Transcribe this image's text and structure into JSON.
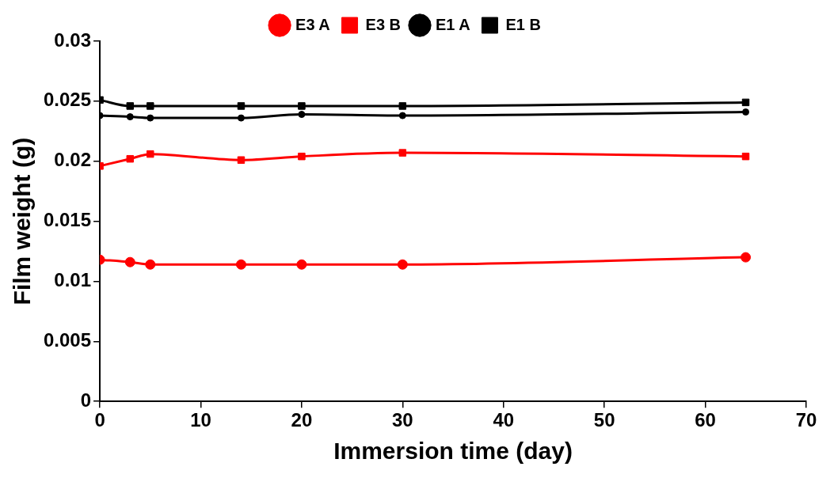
{
  "chart_data": {
    "type": "line",
    "xlabel": "Immersion time (day)",
    "ylabel": "Film weight (g)",
    "x": [
      0,
      3,
      5,
      14,
      20,
      30,
      64
    ],
    "series": [
      {
        "name": "E3 A",
        "color": "#ff0000",
        "marker": "circle",
        "values": [
          0.0118,
          0.0116,
          0.0114,
          0.0114,
          0.0114,
          0.0114,
          0.012
        ]
      },
      {
        "name": "E3 B",
        "color": "#ff0000",
        "marker": "square",
        "values": [
          0.0196,
          0.0202,
          0.0206,
          0.0201,
          0.0204,
          0.0207,
          0.0204
        ]
      },
      {
        "name": "E1 A",
        "color": "#000000",
        "marker": "circle",
        "values": [
          0.0238,
          0.0237,
          0.0236,
          0.0236,
          0.0239,
          0.0238,
          0.0241
        ]
      },
      {
        "name": "E1 B",
        "color": "#000000",
        "marker": "square",
        "values": [
          0.0251,
          0.0246,
          0.0246,
          0.0246,
          0.0246,
          0.0246,
          0.0249
        ]
      }
    ],
    "xlim": [
      0,
      70
    ],
    "xticks": [
      0,
      10,
      20,
      30,
      40,
      50,
      60,
      70
    ],
    "ylim": [
      0,
      0.03
    ],
    "yticks": [
      0,
      0.005,
      0.01,
      0.015,
      0.02,
      0.025,
      0.03
    ],
    "grid": false,
    "legend": "top",
    "line_style": "solid"
  }
}
